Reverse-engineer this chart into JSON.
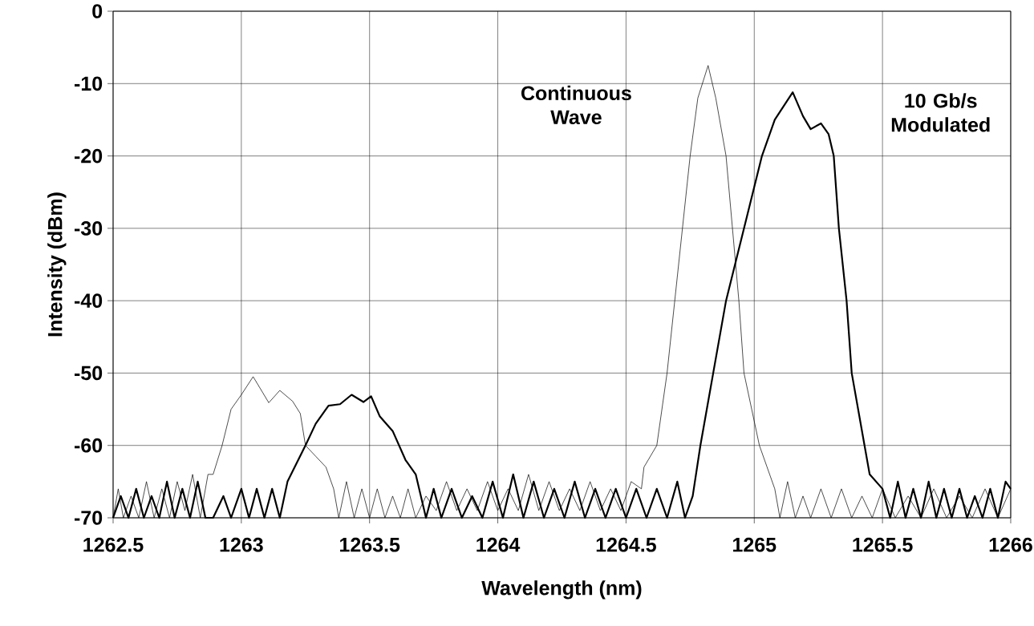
{
  "chart_data": {
    "type": "line",
    "xlabel": "Wavelength (nm)",
    "ylabel": "Intensity (dBm)",
    "xlim": [
      1262.5,
      1266
    ],
    "ylim": [
      -70,
      0
    ],
    "xticks": [
      1262.5,
      1263,
      1263.5,
      1264,
      1264.5,
      1265,
      1265.5,
      1266
    ],
    "yticks": [
      0,
      -10,
      -20,
      -30,
      -40,
      -50,
      -60,
      -70
    ],
    "grid": true,
    "marker": "none",
    "line_style": "solid",
    "annotations": [
      "Continuous Wave",
      "10 Gb/s Modulated"
    ],
    "series": [
      {
        "color": "#000000",
        "x": [
          1262.5,
          1262.52,
          1262.54,
          1262.57,
          1262.6,
          1262.63,
          1262.66,
          1262.69,
          1262.72,
          1262.75,
          1262.78,
          1262.81,
          1262.84,
          1262.87,
          1262.89,
          1262.925,
          1262.96,
          1263.0,
          1263.046,
          1263.08,
          1263.107,
          1263.15,
          1263.2,
          1263.23,
          1263.25,
          1263.29,
          1263.33,
          1263.36,
          1263.38,
          1263.41,
          1263.44,
          1263.47,
          1263.5,
          1263.53,
          1263.56,
          1263.59,
          1263.62,
          1263.65,
          1263.68,
          1263.72,
          1263.76,
          1263.8,
          1263.84,
          1263.88,
          1263.92,
          1263.96,
          1264.0,
          1264.04,
          1264.08,
          1264.12,
          1264.16,
          1264.2,
          1264.24,
          1264.28,
          1264.32,
          1264.36,
          1264.4,
          1264.44,
          1264.48,
          1264.52,
          1264.56,
          1264.57,
          1264.62,
          1264.66,
          1264.69,
          1264.72,
          1264.75,
          1264.78,
          1264.82,
          1264.85,
          1264.89,
          1264.915,
          1264.94,
          1264.96,
          1265.02,
          1265.05,
          1265.08,
          1265.1,
          1265.13,
          1265.16,
          1265.19,
          1265.22,
          1265.26,
          1265.3,
          1265.34,
          1265.38,
          1265.42,
          1265.46,
          1265.5,
          1265.55,
          1265.6,
          1265.65,
          1265.7,
          1265.75,
          1265.8,
          1265.85,
          1265.9,
          1265.95,
          1266
        ],
        "values": [
          -70,
          -66,
          -70,
          -67,
          -70,
          -65,
          -70,
          -66,
          -70,
          -65,
          -69,
          -64,
          -70,
          -64,
          -64,
          -60,
          -55,
          -53,
          -50.5,
          -52.5,
          -54.1,
          -52.4,
          -53.9,
          -55.6,
          -60,
          -61.5,
          -63,
          -66,
          -70,
          -65,
          -70,
          -66,
          -70,
          -66,
          -70,
          -67,
          -70,
          -66,
          -70,
          -67,
          -69,
          -65,
          -69,
          -66,
          -69,
          -65,
          -69,
          -66,
          -69,
          -64,
          -69,
          -65,
          -69,
          -66,
          -69,
          -65,
          -69,
          -66,
          -69,
          -65,
          -66,
          -63,
          -60,
          -50,
          -40,
          -30,
          -20,
          -12,
          -7.5,
          -12,
          -20,
          -30,
          -40,
          -50,
          -60,
          -63,
          -66,
          -70,
          -65,
          -70,
          -67,
          -70,
          -66,
          -70,
          -66,
          -70,
          -67,
          -70,
          -66,
          -70,
          -67,
          -70,
          -66,
          -70,
          -67,
          -70,
          -66,
          -70,
          -66
        ]
      },
      {
        "color": "#000000",
        "x": [
          1262.5,
          1262.53,
          1262.56,
          1262.59,
          1262.62,
          1262.65,
          1262.68,
          1262.71,
          1262.74,
          1262.77,
          1262.8,
          1262.83,
          1262.86,
          1262.89,
          1262.93,
          1262.96,
          1263.0,
          1263.03,
          1263.06,
          1263.09,
          1263.12,
          1263.15,
          1263.18,
          1263.25,
          1263.29,
          1263.34,
          1263.385,
          1263.43,
          1263.476,
          1263.506,
          1263.54,
          1263.59,
          1263.64,
          1263.68,
          1263.7,
          1263.72,
          1263.75,
          1263.78,
          1263.82,
          1263.86,
          1263.9,
          1263.94,
          1263.98,
          1264.02,
          1264.06,
          1264.1,
          1264.14,
          1264.18,
          1264.22,
          1264.26,
          1264.3,
          1264.34,
          1264.38,
          1264.42,
          1264.46,
          1264.5,
          1264.54,
          1264.58,
          1264.62,
          1264.66,
          1264.7,
          1264.73,
          1264.76,
          1264.79,
          1264.84,
          1264.89,
          1264.96,
          1265.03,
          1265.08,
          1265.15,
          1265.19,
          1265.22,
          1265.26,
          1265.29,
          1265.31,
          1265.33,
          1265.36,
          1265.38,
          1265.43,
          1265.45,
          1265.5,
          1265.53,
          1265.56,
          1265.59,
          1265.62,
          1265.65,
          1265.68,
          1265.71,
          1265.74,
          1265.77,
          1265.8,
          1265.83,
          1265.86,
          1265.89,
          1265.92,
          1265.95,
          1265.98,
          1266
        ],
        "values": [
          -70,
          -67,
          -70,
          -66,
          -70,
          -67,
          -70,
          -65,
          -70,
          -66,
          -70,
          -65,
          -70,
          -70,
          -67,
          -70,
          -66,
          -70,
          -66,
          -70,
          -66,
          -70,
          -65,
          -60,
          -57,
          -54.5,
          -54.3,
          -53,
          -54,
          -53.2,
          -56,
          -58,
          -62,
          -64,
          -67,
          -70,
          -66,
          -70,
          -66,
          -70,
          -67,
          -70,
          -65,
          -70,
          -64,
          -70,
          -65,
          -70,
          -66,
          -70,
          -65,
          -70,
          -66,
          -70,
          -66,
          -70,
          -66,
          -70,
          -66,
          -70,
          -65,
          -70,
          -67,
          -60,
          -50,
          -40,
          -30,
          -20,
          -15,
          -11.2,
          -14.5,
          -16.3,
          -15.5,
          -17,
          -20,
          -30,
          -40,
          -50,
          -60,
          -64,
          -66,
          -70,
          -65,
          -70,
          -66,
          -70,
          -65,
          -70,
          -66,
          -70,
          -66,
          -70,
          -67,
          -70,
          -66,
          -70,
          -65,
          -66
        ]
      }
    ]
  }
}
